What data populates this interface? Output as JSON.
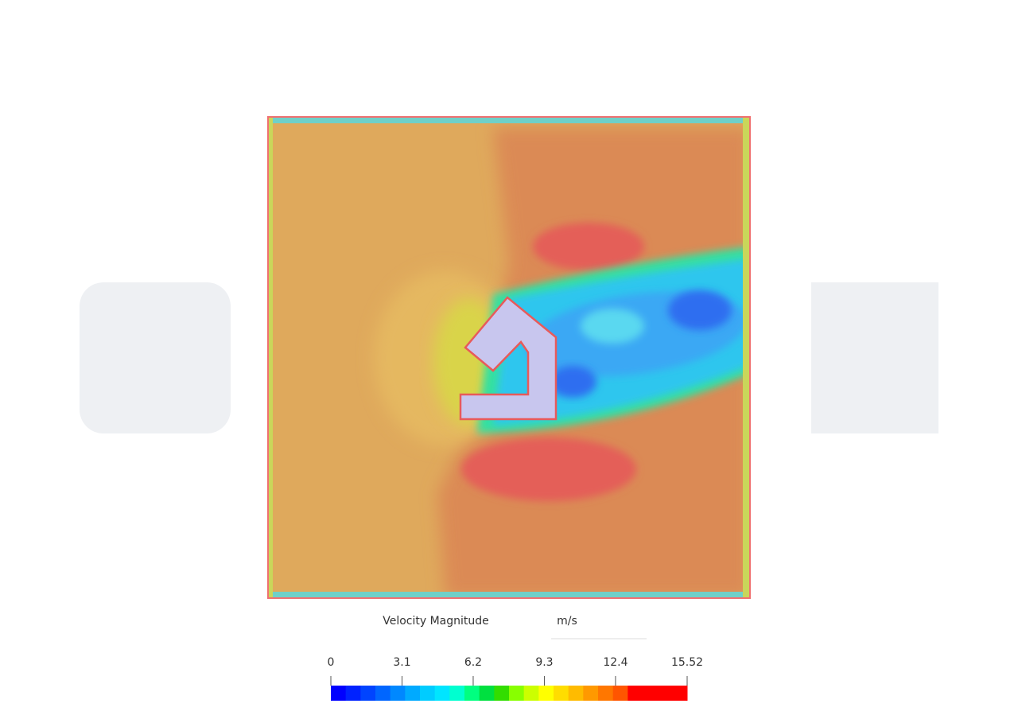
{
  "legend": {
    "title": "Velocity Magnitude",
    "unit": "m/s",
    "range": [
      0,
      15.52
    ],
    "ticks": [
      0,
      3.1,
      6.2,
      9.3,
      12.4,
      15.52
    ],
    "colors": [
      "#0000ff",
      "#0022ff",
      "#0044ff",
      "#0066ff",
      "#0088ff",
      "#00aaff",
      "#00ccff",
      "#00e5ff",
      "#00ffd0",
      "#00ff80",
      "#00e040",
      "#33dd00",
      "#88ff00",
      "#ccff00",
      "#ffff00",
      "#ffdd00",
      "#ffbb00",
      "#ff9900",
      "#ff7700",
      "#ff5500",
      "#ff0000",
      "#ff0000",
      "#ff0000",
      "#ff0000"
    ]
  }
}
